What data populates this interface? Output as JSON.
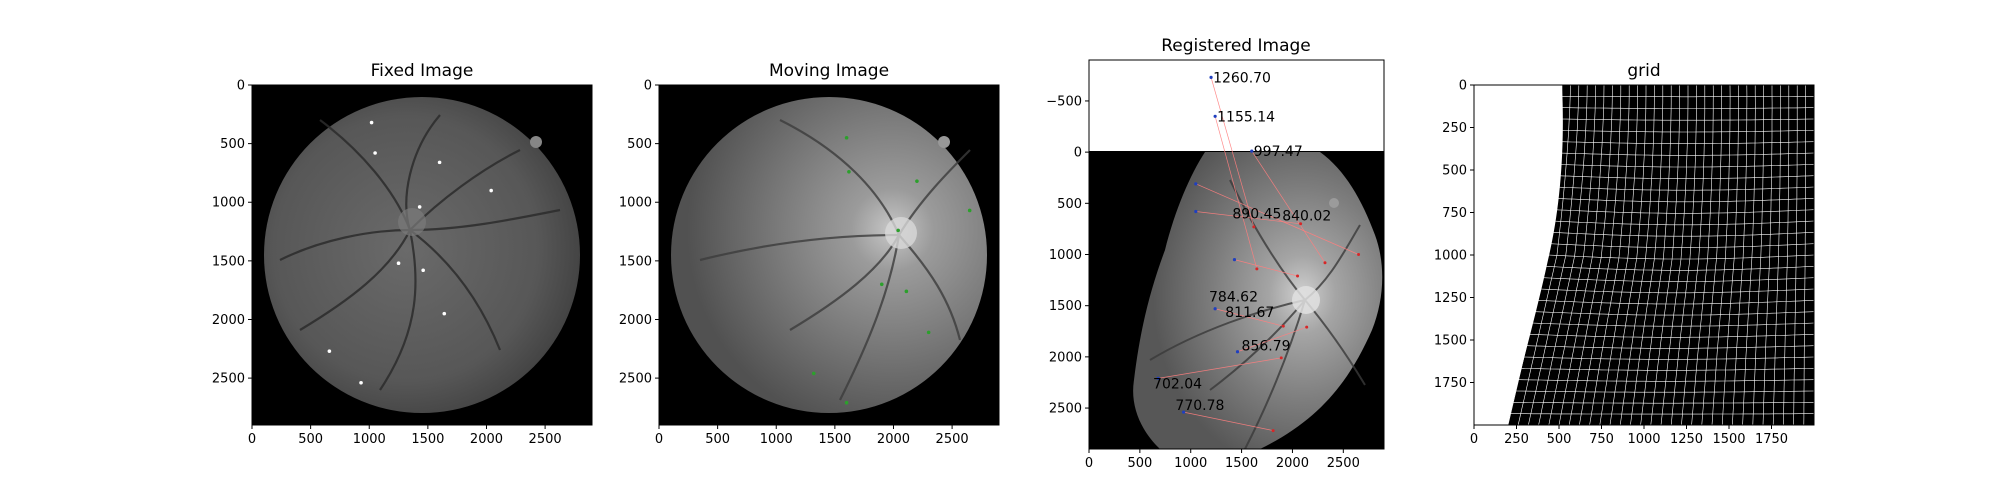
{
  "figure": {
    "background": "#ffffff"
  },
  "chart_data": [
    {
      "type": "image",
      "title": "Fixed Image",
      "xlim": [
        0,
        2900
      ],
      "ylim": [
        2900,
        0
      ],
      "xticks": [
        "0",
        "500",
        "1000",
        "1500",
        "2000",
        "2500"
      ],
      "yticks": [
        "0",
        "500",
        "1000",
        "1500",
        "2000",
        "2500"
      ],
      "fundus": {
        "cx": 1450,
        "cy": 1450,
        "r": 1350,
        "brightness": "#5a5a5a"
      },
      "points_color": "#ffffff",
      "points": [
        [
          1020,
          320
        ],
        [
          1050,
          580
        ],
        [
          1600,
          660
        ],
        [
          2040,
          900
        ],
        [
          1430,
          1040
        ],
        [
          1250,
          1520
        ],
        [
          1460,
          1580
        ],
        [
          1640,
          1950
        ],
        [
          660,
          2270
        ],
        [
          930,
          2540
        ]
      ]
    },
    {
      "type": "image",
      "title": "Moving Image",
      "xlim": [
        0,
        2900
      ],
      "ylim": [
        2900,
        0
      ],
      "xticks": [
        "0",
        "500",
        "1000",
        "1500",
        "2000",
        "2500"
      ],
      "yticks": [
        "0",
        "500",
        "1000",
        "1500",
        "2000",
        "2500"
      ],
      "fundus": {
        "cx": 1450,
        "cy": 1450,
        "r": 1350,
        "brightness": "#6e6e6e"
      },
      "points_color": "#2ca02c",
      "points": [
        [
          1600,
          450
        ],
        [
          1620,
          740
        ],
        [
          2200,
          820
        ],
        [
          2650,
          1070
        ],
        [
          2040,
          1240
        ],
        [
          1900,
          1700
        ],
        [
          2110,
          1760
        ],
        [
          2300,
          2110
        ],
        [
          1320,
          2460
        ],
        [
          1600,
          2710
        ]
      ]
    },
    {
      "type": "image",
      "title": "Registered Image",
      "xlim": [
        0,
        2900
      ],
      "ylim": [
        2900,
        -900
      ],
      "xticks": [
        "0",
        "500",
        "1000",
        "1500",
        "2000",
        "2500"
      ],
      "yticks": [
        "−500",
        "0",
        "500",
        "1000",
        "1500",
        "2000",
        "2500"
      ],
      "ytick_values": [
        -500,
        0,
        500,
        1000,
        1500,
        2000,
        2500
      ],
      "fixed_points": [
        [
          1200,
          -730
        ],
        [
          1240,
          -350
        ],
        [
          1600,
          -10
        ],
        [
          1050,
          310
        ],
        [
          1050,
          580
        ],
        [
          1430,
          1050
        ],
        [
          1240,
          1530
        ],
        [
          1460,
          1950
        ],
        [
          680,
          2210
        ],
        [
          930,
          2540
        ]
      ],
      "moving_points": [
        [
          1620,
          730
        ],
        [
          1650,
          1140
        ],
        [
          2320,
          1080
        ],
        [
          2650,
          1000
        ],
        [
          2080,
          700
        ],
        [
          2050,
          1210
        ],
        [
          1910,
          1700
        ],
        [
          2140,
          1710
        ],
        [
          1890,
          2010
        ],
        [
          1810,
          2720
        ]
      ],
      "labels": [
        "1260.70",
        "1155.14",
        "997.47",
        "890.45",
        "840.02",
        "784.62",
        "811.67",
        "856.79",
        "702.04",
        "770.78"
      ],
      "label_anchor": [
        [
          1200,
          -730
        ],
        [
          1240,
          -350
        ],
        [
          1600,
          -10
        ],
        [
          1390,
          600
        ],
        [
          1880,
          620
        ],
        [
          1160,
          1410
        ],
        [
          1320,
          1560
        ],
        [
          1480,
          1890
        ],
        [
          610,
          2260
        ],
        [
          830,
          2470
        ]
      ]
    },
    {
      "type": "image",
      "title": "grid",
      "xlim": [
        0,
        2000
      ],
      "ylim": [
        2000,
        0
      ],
      "xticks": [
        "0",
        "250",
        "500",
        "750",
        "1000",
        "1250",
        "1500",
        "1750"
      ],
      "yticks": [
        "0",
        "250",
        "500",
        "750",
        "1000",
        "1250",
        "1500",
        "1750"
      ],
      "grid_color": "#ffffff"
    }
  ]
}
